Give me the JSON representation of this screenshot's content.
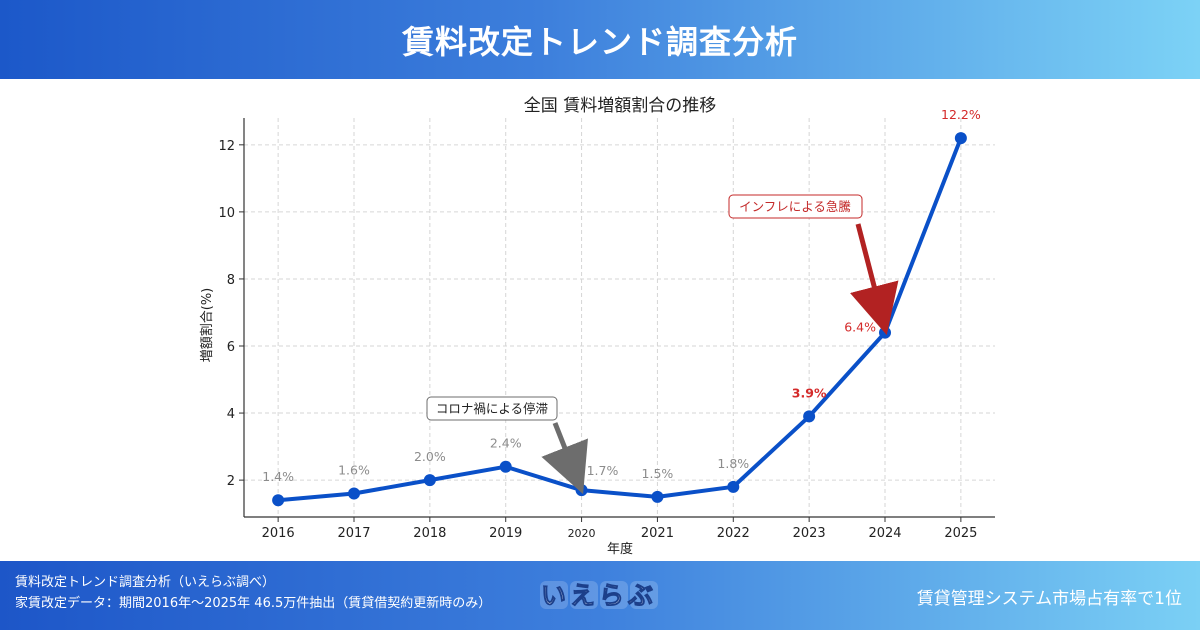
{
  "header": {
    "title": "賃料改定トレンド調査分析"
  },
  "footer": {
    "line1": "賃料改定トレンド調査分析（いえらぶ調べ）",
    "line2": "家賃改定データ：期間2016年～2025年 46.5万件抽出（賃貸借契約更新時のみ）",
    "logo_text": "いえらぶ",
    "right_text": "賃貸管理システム市場占有率で1位"
  },
  "chart_data": {
    "type": "line",
    "title": "全国 賃料増額割合の推移",
    "xlabel": "年度",
    "ylabel": "増額割合(%)",
    "x": [
      2016,
      2017,
      2018,
      2019,
      2020,
      2021,
      2022,
      2023,
      2024,
      2025
    ],
    "x_tick_labels": [
      "2016",
      "2017",
      "2018",
      "2019",
      "2020",
      "2021",
      "2022",
      "2023",
      "2024",
      "2025"
    ],
    "series": [
      {
        "values": [
          1.4,
          1.6,
          2.0,
          2.4,
          1.7,
          1.5,
          1.8,
          3.9,
          6.4,
          12.2
        ],
        "data_labels": [
          "1.4%",
          "1.6%",
          "2.0%",
          "2.4%",
          "1.7%",
          "1.5%",
          "1.8%",
          "3.9%",
          "6.4%",
          "12.2%"
        ],
        "color": "#0a50c8"
      }
    ],
    "y_ticks": [
      2,
      4,
      6,
      8,
      10,
      12
    ],
    "ylim": [
      0.9,
      12.8
    ],
    "xlim": [
      2015.55,
      2025.45
    ],
    "grid": true,
    "label_colors": {
      "normal": "#8c8c8c",
      "highlight": "#d42a2a"
    },
    "annotations": [
      {
        "text": "コロナ禍による停滞",
        "x": 2020,
        "y": 1.7,
        "color": "#6d6d6d"
      },
      {
        "text": "インフレによる急騰",
        "x": 2024,
        "y": 6.4,
        "color": "#c42a2a"
      }
    ]
  }
}
